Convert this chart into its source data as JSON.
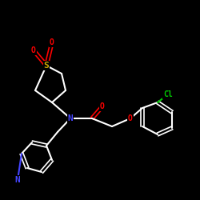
{
  "bg": "black",
  "atom_colors": {
    "C": "white",
    "N": "#4444ff",
    "O": "red",
    "S": "#ccaa00",
    "Cl": "#00cc00",
    "H": "white"
  },
  "bond_width": 1.5,
  "font_size": 7,
  "figsize": [
    2.5,
    2.5
  ],
  "dpi": 100
}
